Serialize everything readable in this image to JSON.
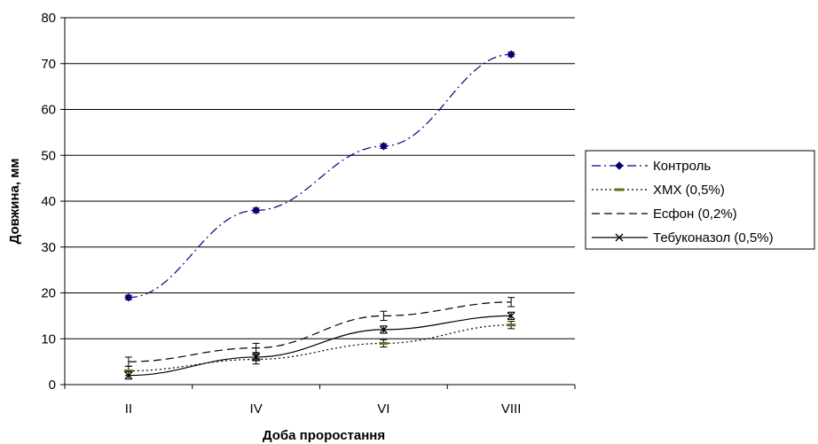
{
  "chart_data": {
    "type": "line",
    "title": "",
    "xlabel": "Доба проростання",
    "ylabel": "Довжина, мм",
    "categories": [
      "II",
      "IV",
      "VI",
      "VIII"
    ],
    "ylim": [
      0,
      80
    ],
    "yticks": [
      0,
      10,
      20,
      30,
      40,
      50,
      60,
      70,
      80
    ],
    "grid": "horizontal",
    "legend_position": "right",
    "series": [
      {
        "name": "Контроль",
        "values": [
          19,
          38,
          52,
          72
        ],
        "errors": [
          0.5,
          0.5,
          0.5,
          0.5
        ],
        "color": "#000080",
        "dash": "dash-dot",
        "marker": "diamond"
      },
      {
        "name": "ХМХ (0,5%)",
        "values": [
          3,
          5.5,
          9,
          13
        ],
        "errors": [
          1,
          1,
          0.8,
          0.8
        ],
        "color": "#000000",
        "dash": "dot",
        "marker": "dash-olive"
      },
      {
        "name": "Есфон (0,2%)",
        "values": [
          5,
          8,
          15,
          18
        ],
        "errors": [
          1,
          1,
          1,
          1
        ],
        "color": "#000000",
        "dash": "dash",
        "marker": "none"
      },
      {
        "name": "Тебуконазол (0,5%)",
        "values": [
          2,
          6,
          12,
          15
        ],
        "errors": [
          0.8,
          0.8,
          0.8,
          0.8
        ],
        "color": "#000000",
        "dash": "solid",
        "marker": "x"
      }
    ]
  }
}
